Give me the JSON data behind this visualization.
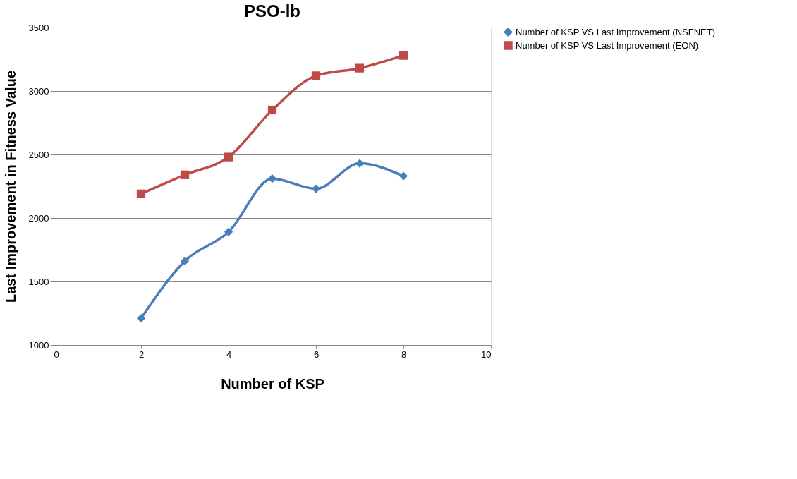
{
  "chart_data": {
    "type": "line",
    "title": "PSO-lb",
    "xlabel": "Number of KSP",
    "ylabel": "Last Improvement in Fitness Value",
    "x": [
      2,
      3,
      4,
      5,
      6,
      7,
      8
    ],
    "series": [
      {
        "name": "Number of KSP VS Last Improvement (NSFNET)",
        "color": "#4a7ebb",
        "marker": "diamond",
        "values": [
          1210,
          1660,
          1890,
          2310,
          2230,
          2430,
          2330
        ]
      },
      {
        "name": "Number of KSP VS Last Improvement (EON)",
        "color": "#be4b48",
        "marker": "square",
        "values": [
          2190,
          2340,
          2480,
          2850,
          3120,
          3180,
          3280
        ]
      }
    ],
    "xlim": [
      0,
      10
    ],
    "xticks": [
      0,
      2,
      4,
      6,
      8,
      10
    ],
    "ylim": [
      1000,
      3500
    ],
    "yticks": [
      1000,
      1500,
      2000,
      2500,
      3000,
      3500
    ],
    "grid": "y",
    "legend": "right",
    "line_style": "solid"
  }
}
